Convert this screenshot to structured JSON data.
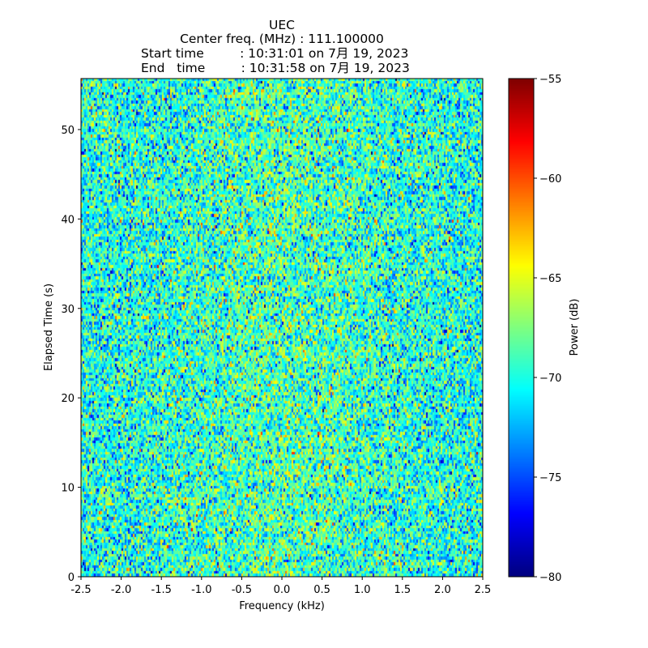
{
  "chart_data": {
    "type": "heatmap",
    "title_lines": [
      "UEC",
      "Center freq. (MHz) : 111.100000",
      "Start time         : 10:31:01 on 7月 19, 2023",
      "End   time         : 10:31:58 on 7月 19, 2023"
    ],
    "xlabel": "Frequency (kHz)",
    "ylabel": "Elapsed Time (s)",
    "xlim": [
      -2.5,
      2.5
    ],
    "ylim": [
      0,
      55.7
    ],
    "xticks": [
      "-2.5",
      "-2.0",
      "-1.5",
      "-1.0",
      "-0.5",
      "0.0",
      "0.5",
      "1.0",
      "1.5",
      "2.0",
      "2.5"
    ],
    "yticks": [
      "0",
      "10",
      "20",
      "30",
      "40",
      "50"
    ],
    "colorbar": {
      "label": "Power (dB)",
      "range": [
        -80,
        -55
      ],
      "ticks": [
        "−80",
        "−75",
        "−70",
        "−65",
        "−60",
        "−55"
      ],
      "colormap": "jet"
    },
    "noise": {
      "mean_db": -70,
      "std_db": 3,
      "freq_bins": 248,
      "time_bins": 176
    }
  }
}
